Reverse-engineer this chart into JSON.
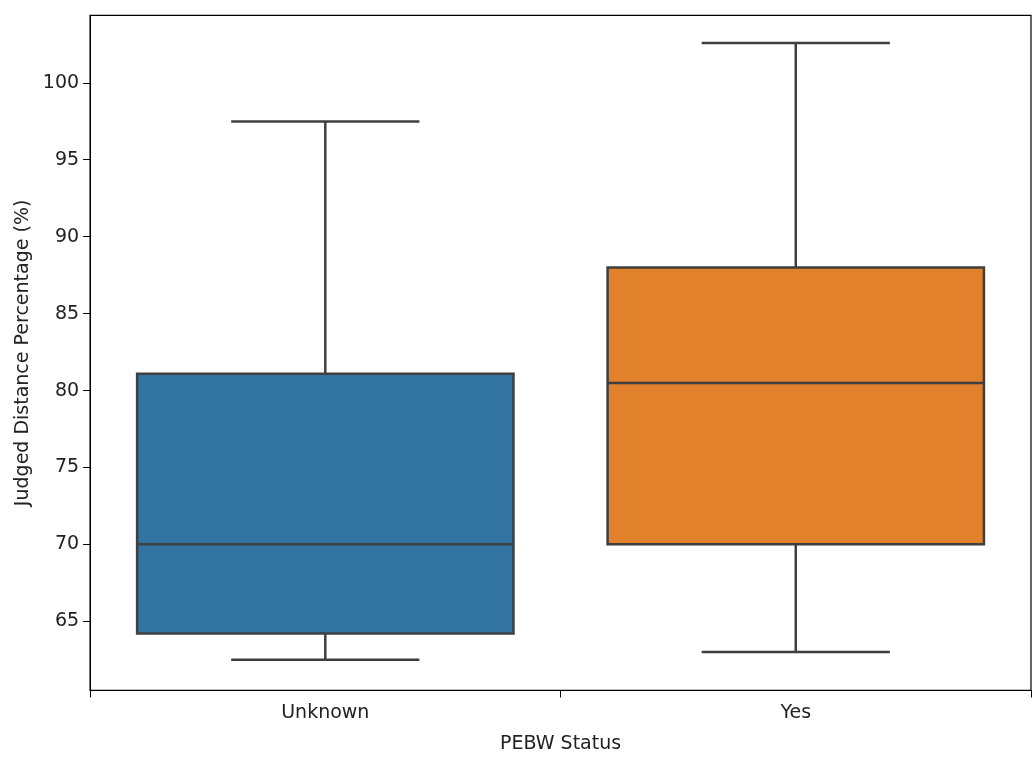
{
  "chart_data": {
    "type": "box",
    "xlabel": "PEBW Status",
    "ylabel": "Judged Distance Percentage (%)",
    "categories": [
      "Unknown",
      "Yes"
    ],
    "colors": [
      "#3274a1",
      "#e1812c"
    ],
    "boxes": [
      {
        "low": 62.5,
        "q1": 64.2,
        "median": 70,
        "q3": 81.1,
        "high": 97.5
      },
      {
        "low": 63,
        "q1": 70,
        "median": 80.5,
        "q3": 88,
        "high": 102.6
      }
    ],
    "ylim": [
      60.5,
      104.4
    ],
    "yticks": [
      65,
      70,
      75,
      80,
      85,
      90,
      95,
      100
    ]
  }
}
